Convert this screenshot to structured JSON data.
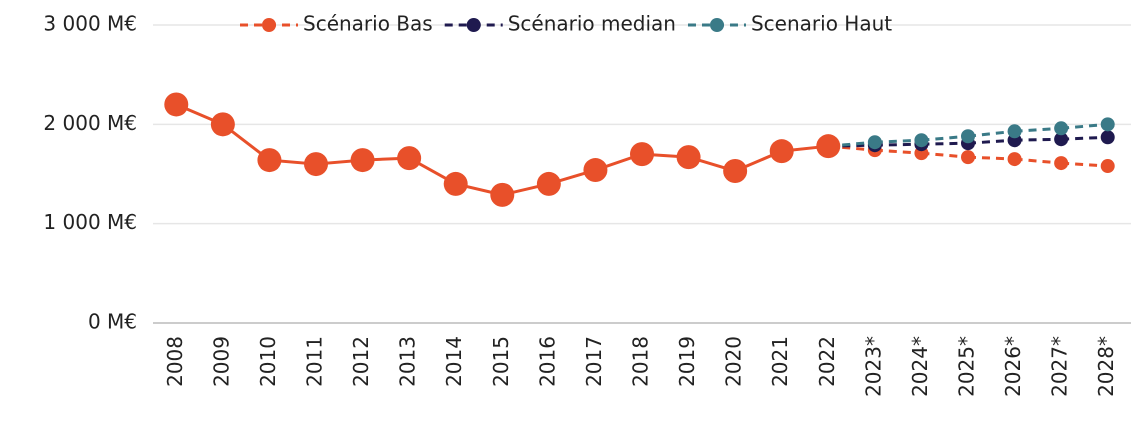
{
  "chart_data": {
    "type": "line",
    "categories": [
      "2008",
      "2009",
      "2010",
      "2011",
      "2012",
      "2013",
      "2014",
      "2015",
      "2016",
      "2017",
      "2018",
      "2019",
      "2020",
      "2021",
      "2022",
      "2023*",
      "2024*",
      "2025*",
      "2026*",
      "2027*",
      "2028*"
    ],
    "series": [
      {
        "name": "Scénario Bas",
        "color": "#e8502a",
        "values": [
          2200,
          2000,
          1640,
          1600,
          1640,
          1660,
          1400,
          1290,
          1400,
          1540,
          1700,
          1670,
          1530,
          1730,
          1780,
          1740,
          1710,
          1670,
          1650,
          1610,
          1580
        ]
      },
      {
        "name": "Scénario median",
        "color": "#1f1a4f",
        "values": [
          null,
          null,
          null,
          null,
          null,
          null,
          null,
          null,
          null,
          null,
          null,
          null,
          null,
          null,
          1780,
          1790,
          1800,
          1810,
          1840,
          1850,
          1870
        ]
      },
      {
        "name": "Scenario Haut",
        "color": "#3a7a87",
        "values": [
          null,
          null,
          null,
          null,
          null,
          null,
          null,
          null,
          null,
          null,
          null,
          null,
          null,
          null,
          1780,
          1820,
          1840,
          1880,
          1930,
          1960,
          2000
        ]
      }
    ],
    "ylim": [
      0,
      3000
    ],
    "yticks": [
      {
        "value": 0,
        "label": "0 M€"
      },
      {
        "value": 1000,
        "label": "1 000 M€"
      },
      {
        "value": 2000,
        "label": "2 000 M€"
      },
      {
        "value": 3000,
        "label": "3 000 M€"
      }
    ],
    "grid": true,
    "legend": "top"
  }
}
